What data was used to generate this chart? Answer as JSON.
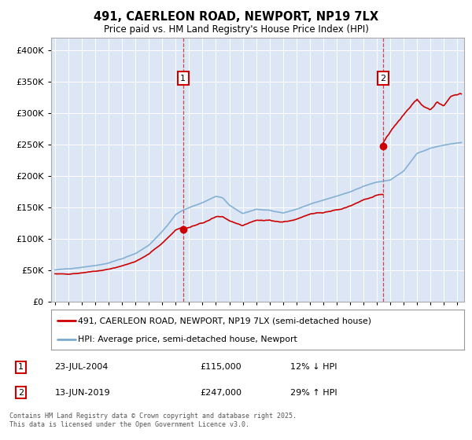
{
  "title": "491, CAERLEON ROAD, NEWPORT, NP19 7LX",
  "subtitle": "Price paid vs. HM Land Registry's House Price Index (HPI)",
  "legend_label_red": "491, CAERLEON ROAD, NEWPORT, NP19 7LX (semi-detached house)",
  "legend_label_blue": "HPI: Average price, semi-detached house, Newport",
  "footer": "Contains HM Land Registry data © Crown copyright and database right 2025.\nThis data is licensed under the Open Government Licence v3.0.",
  "annotation1_label": "1",
  "annotation1_date": "23-JUL-2004",
  "annotation1_price": "£115,000",
  "annotation1_hpi": "12% ↓ HPI",
  "annotation1_year": 2004.55,
  "annotation1_value": 115000,
  "annotation2_label": "2",
  "annotation2_date": "13-JUN-2019",
  "annotation2_price": "£247,000",
  "annotation2_hpi": "29% ↑ HPI",
  "annotation2_year": 2019.46,
  "annotation2_value": 247000,
  "background_color": "#dce6f5",
  "red_color": "#cc0000",
  "blue_color": "#7aaad0",
  "ylim_max": 420000,
  "xlim_start": 1994.7,
  "xlim_end": 2025.5
}
